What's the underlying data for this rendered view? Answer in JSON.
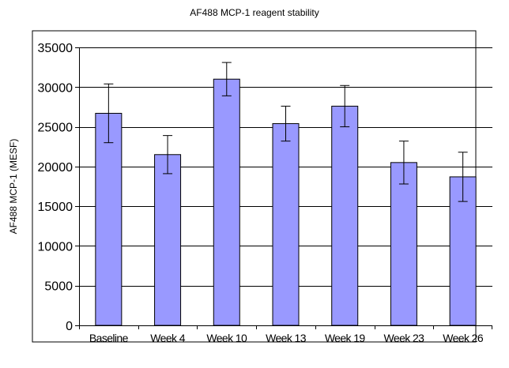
{
  "colors": {
    "bar_fill": "#9999ff",
    "bar_stroke": "#000000",
    "gridline": "#000000",
    "background": "#ffffff"
  },
  "chart_data": {
    "type": "bar",
    "title": "AF488 MCP-1 reagent stability",
    "xlabel": "",
    "ylabel": "AF488 MCP-1 (MESF)",
    "categories": [
      "Baseline",
      "Week 4",
      "Week 10",
      "Week 13",
      "Week 19",
      "Week 23",
      "Week 26"
    ],
    "values": [
      26700,
      21500,
      31000,
      25400,
      27600,
      20500,
      18700
    ],
    "error_bars": [
      3700,
      2400,
      2100,
      2200,
      2600,
      2700,
      3100
    ],
    "ylim": [
      0,
      35000
    ],
    "yticks": [
      0,
      5000,
      10000,
      15000,
      20000,
      25000,
      30000,
      35000
    ],
    "ytick_labels": [
      "0",
      "5000",
      "10000",
      "15000",
      "20000",
      "25000",
      "30000",
      "35000"
    ],
    "grid": true,
    "legend": "none"
  }
}
